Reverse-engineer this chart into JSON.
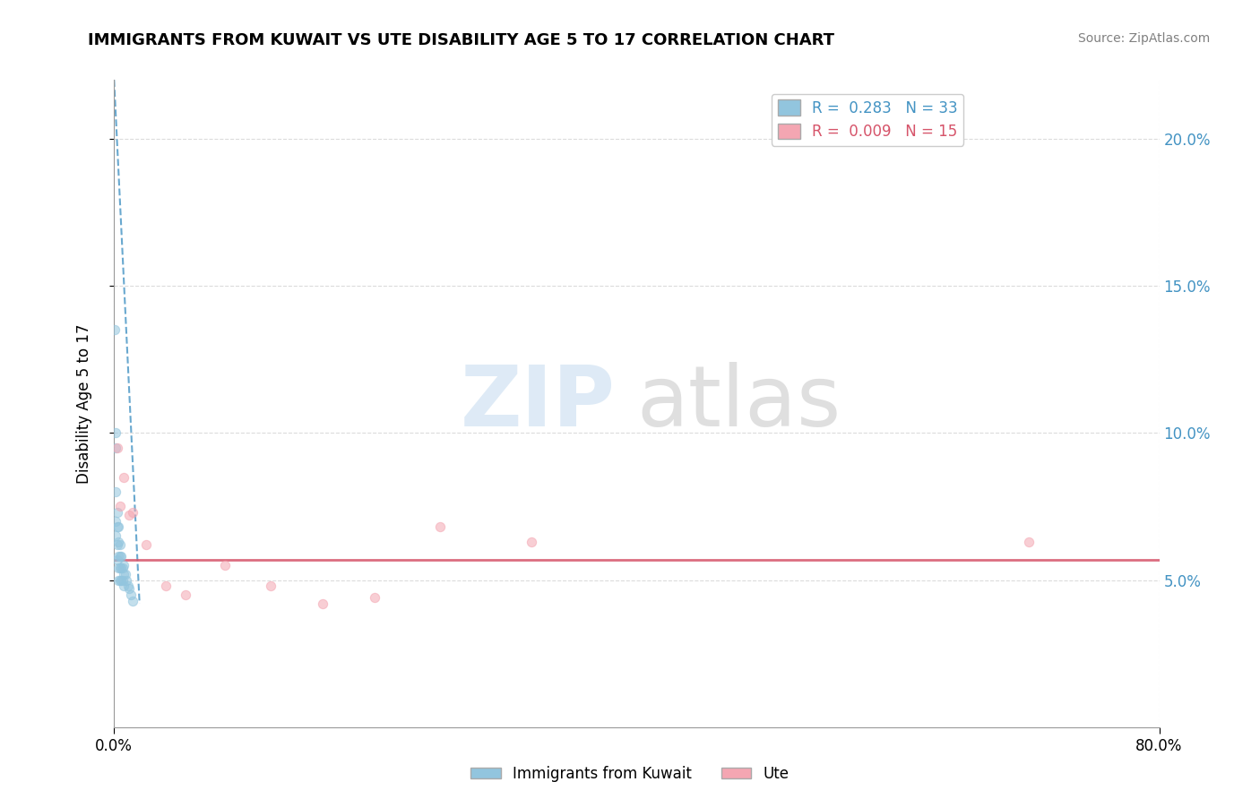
{
  "title": "IMMIGRANTS FROM KUWAIT VS UTE DISABILITY AGE 5 TO 17 CORRELATION CHART",
  "source_text": "Source: ZipAtlas.com",
  "xlabel": "",
  "ylabel": "Disability Age 5 to 17",
  "xlim": [
    0.0,
    0.8
  ],
  "ylim": [
    0.0,
    0.22
  ],
  "x_ticks": [
    0.0,
    0.8
  ],
  "x_tick_labels": [
    "0.0%",
    "80.0%"
  ],
  "right_y_ticks": [
    0.05,
    0.1,
    0.15,
    0.2
  ],
  "right_y_tick_labels": [
    "5.0%",
    "10.0%",
    "15.0%",
    "20.0%"
  ],
  "legend_entries": [
    {
      "label": "R =  0.283   N = 33",
      "color": "#92c5de"
    },
    {
      "label": "R =  0.009   N = 15",
      "color": "#f4a6b2"
    }
  ],
  "kuwait_scatter_x": [
    0.001,
    0.002,
    0.002,
    0.002,
    0.002,
    0.002,
    0.003,
    0.003,
    0.003,
    0.003,
    0.004,
    0.004,
    0.004,
    0.004,
    0.004,
    0.005,
    0.005,
    0.005,
    0.005,
    0.006,
    0.006,
    0.006,
    0.007,
    0.007,
    0.008,
    0.008,
    0.008,
    0.009,
    0.01,
    0.011,
    0.012,
    0.013,
    0.015
  ],
  "kuwait_scatter_y": [
    0.135,
    0.095,
    0.1,
    0.08,
    0.07,
    0.065,
    0.073,
    0.068,
    0.062,
    0.057,
    0.068,
    0.063,
    0.058,
    0.054,
    0.05,
    0.062,
    0.058,
    0.054,
    0.05,
    0.058,
    0.054,
    0.05,
    0.054,
    0.05,
    0.055,
    0.052,
    0.048,
    0.052,
    0.05,
    0.048,
    0.047,
    0.045,
    0.043
  ],
  "ute_scatter_x": [
    0.003,
    0.005,
    0.008,
    0.012,
    0.015,
    0.025,
    0.04,
    0.055,
    0.085,
    0.12,
    0.16,
    0.2,
    0.25,
    0.32,
    0.7
  ],
  "ute_scatter_y": [
    0.095,
    0.075,
    0.085,
    0.072,
    0.073,
    0.062,
    0.048,
    0.045,
    0.055,
    0.048,
    0.042,
    0.044,
    0.068,
    0.063,
    0.063
  ],
  "kuwait_trendline_x": [
    0.0005,
    0.02
  ],
  "kuwait_trendline_y": [
    0.22,
    0.042
  ],
  "ute_trendline_y": 0.057,
  "scatter_size": 55,
  "scatter_alpha": 0.55,
  "kuwait_color": "#92c5de",
  "ute_color": "#f4a6b2",
  "trend_kuwait_color": "#4393c3",
  "trend_ute_color": "#d6546a",
  "watermark_zip": "ZIP",
  "watermark_atlas": "atlas",
  "background_color": "#ffffff",
  "grid_color": "#cccccc"
}
